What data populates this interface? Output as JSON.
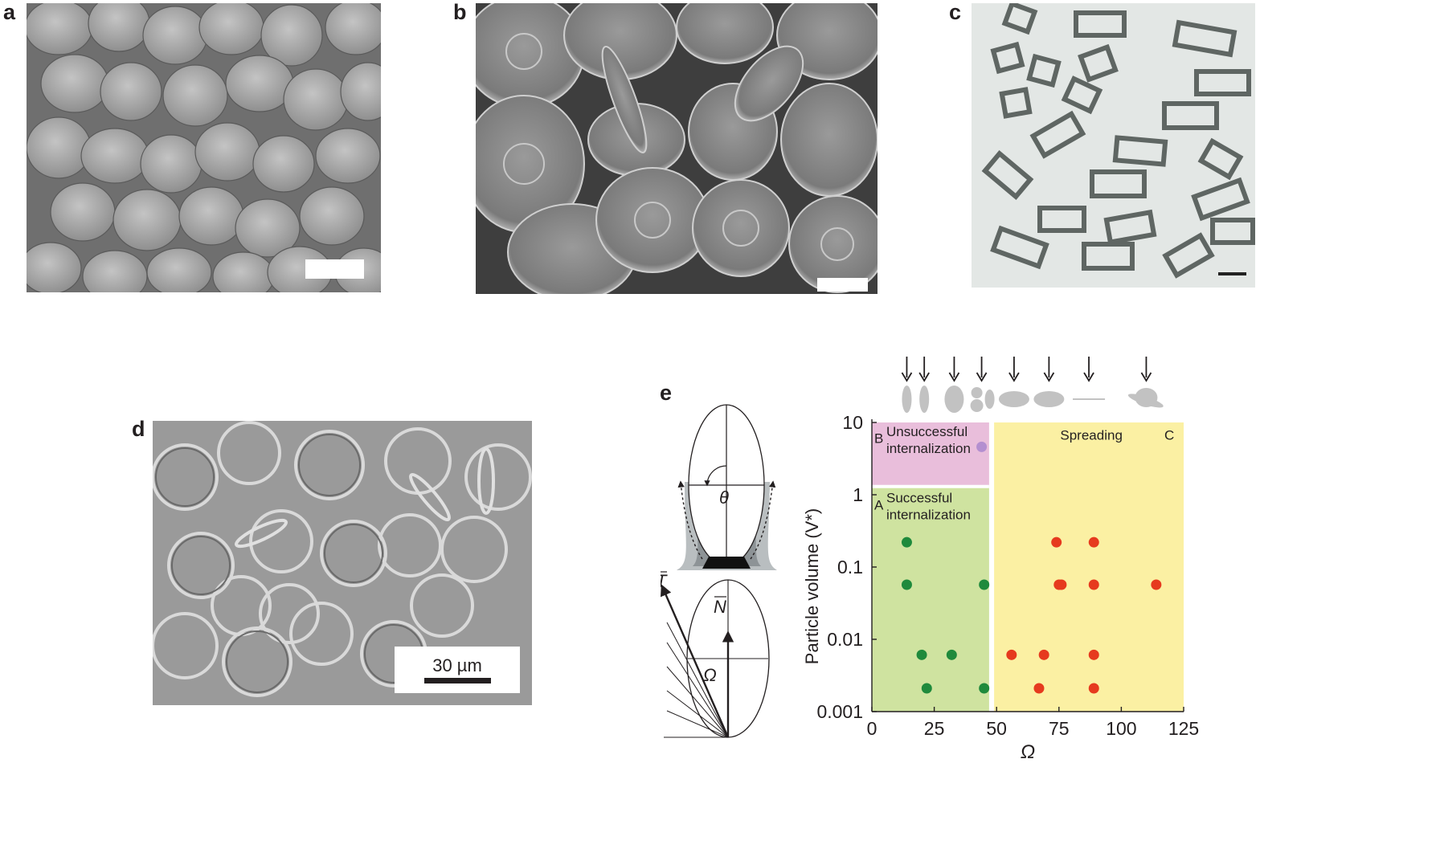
{
  "panels": {
    "a": {
      "letter": "a"
    },
    "b": {
      "letter": "b"
    },
    "c": {
      "letter": "c"
    },
    "d": {
      "letter": "d",
      "scale_bar_label": "30 µm"
    },
    "e": {
      "letter": "e"
    }
  },
  "diagram": {
    "theta": "θ",
    "T_label": "T",
    "N_label": "N",
    "omega": "Ω"
  },
  "colors": {
    "region_A": "#cfe3a0",
    "region_B": "#e9bedb",
    "region_C": "#fbf0a3",
    "successful": "#1f8a3c",
    "spreading": "#e63a1e",
    "unsuccessful": "#b48fd0"
  },
  "shape_icons": [
    "thin-ellipse",
    "thin-ellipse",
    "oblate-ellipse",
    "snowman",
    "flat-ellipse",
    "flat-ellipse",
    "line",
    "ufo-shape"
  ],
  "chart_data": {
    "type": "scatter",
    "xlabel": "Ω",
    "ylabel": "Particle volume (V*)",
    "xlim": [
      0,
      125
    ],
    "ylim": [
      0.001,
      10
    ],
    "yscale": "log",
    "x_ticks": [
      "0",
      "25",
      "50",
      "75",
      "100",
      "125"
    ],
    "y_ticks": [
      "0.001",
      "0.01",
      "0.1",
      "1",
      "10"
    ],
    "x_tick_values": [
      0,
      25,
      50,
      75,
      100,
      125
    ],
    "y_tick_values": [
      0.001,
      0.01,
      0.1,
      1,
      10
    ],
    "regions": [
      {
        "id": "A",
        "letter": "A",
        "text": [
          "Successful",
          "internalization"
        ],
        "x": [
          0,
          47
        ],
        "y": [
          0.001,
          1.3
        ]
      },
      {
        "id": "B",
        "letter": "B",
        "text": [
          "Unsuccessful",
          "internalization"
        ],
        "x": [
          0,
          47
        ],
        "y": [
          1.3,
          10
        ]
      },
      {
        "id": "C",
        "letter": "C",
        "text": [
          "Spreading"
        ],
        "x": [
          49,
          125
        ],
        "y": [
          0.001,
          10
        ]
      }
    ],
    "series": [
      {
        "name": "Successful internalization",
        "points": [
          [
            14,
            0.22
          ],
          [
            14,
            0.057
          ],
          [
            45,
            0.057
          ],
          [
            20,
            0.0061
          ],
          [
            32,
            0.0061
          ],
          [
            22,
            0.0021
          ],
          [
            45,
            0.0021
          ]
        ]
      },
      {
        "name": "Unsuccessful internalization",
        "points": [
          [
            44,
            4.6
          ]
        ]
      },
      {
        "name": "Spreading",
        "points": [
          [
            74,
            0.22
          ],
          [
            89,
            0.22
          ],
          [
            75,
            0.057
          ],
          [
            76,
            0.057
          ],
          [
            89,
            0.057
          ],
          [
            114,
            0.057
          ],
          [
            56,
            0.0061
          ],
          [
            69,
            0.0061
          ],
          [
            89,
            0.0061
          ],
          [
            67,
            0.0021
          ],
          [
            89,
            0.0021
          ]
        ]
      }
    ],
    "arrow_x": [
      14,
      21,
      33,
      44,
      57,
      71,
      87,
      110
    ]
  }
}
